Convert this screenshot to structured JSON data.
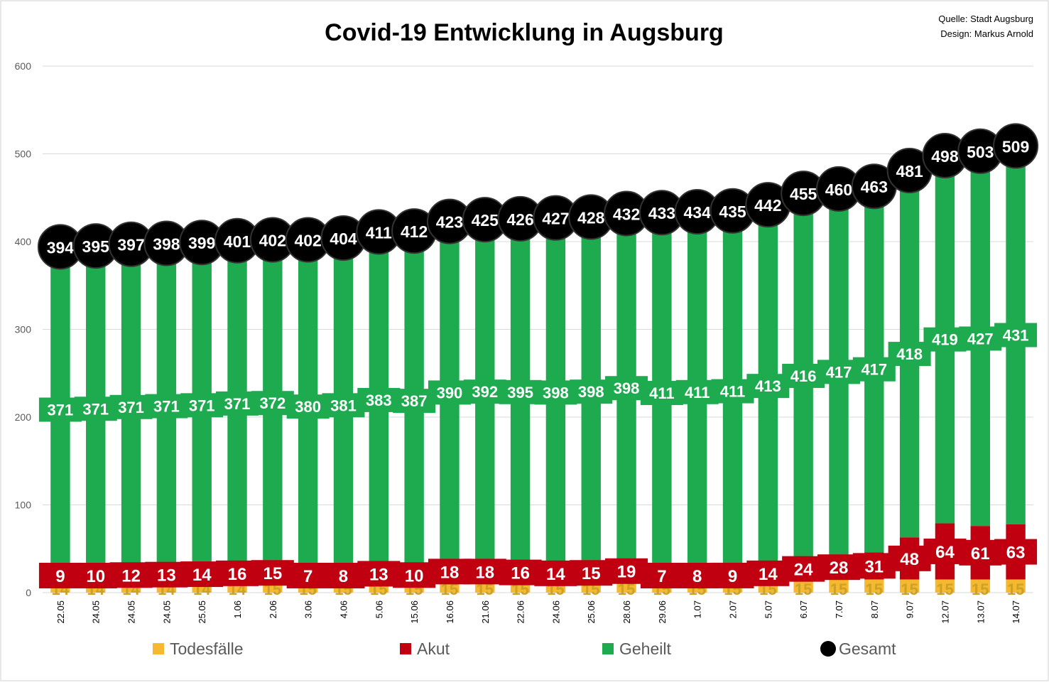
{
  "chart_data": {
    "type": "bar",
    "title": "Covid-19 Entwicklung in Augsburg",
    "source": {
      "line1": "Quelle: Stadt Augsburg",
      "line2": "Design: Markus Arnold"
    },
    "xlabel": "",
    "ylabel": "",
    "ylim": [
      0,
      600
    ],
    "yticks": [
      0,
      100,
      200,
      300,
      400,
      500,
      600
    ],
    "grid": true,
    "legend_position": "bottom",
    "categories": [
      "22.05",
      "24.05",
      "24.05",
      "24.05",
      "25.05",
      "1.06",
      "2.06",
      "3.06",
      "4.06",
      "5.06",
      "15.06",
      "16.06",
      "21.06",
      "22.06",
      "24.06",
      "25.06",
      "28.06",
      "29.06",
      "1.07",
      "2.07",
      "5.07",
      "6.07",
      "7.07",
      "8.07",
      "9.07",
      "12.07",
      "13.07",
      "14.07"
    ],
    "series": [
      {
        "name": "Todesfälle",
        "values": [
          14,
          14,
          14,
          14,
          14,
          14,
          15,
          15,
          15,
          15,
          15,
          15,
          15,
          15,
          15,
          15,
          15,
          15,
          15,
          15,
          15,
          15,
          15,
          15,
          15,
          15,
          15,
          15
        ]
      },
      {
        "name": "Akut",
        "values": [
          9,
          10,
          12,
          13,
          14,
          16,
          15,
          7,
          8,
          13,
          10,
          18,
          18,
          16,
          14,
          15,
          19,
          7,
          8,
          9,
          14,
          24,
          28,
          31,
          48,
          64,
          61,
          63
        ]
      },
      {
        "name": "Geheilt",
        "values": [
          371,
          371,
          371,
          371,
          371,
          371,
          372,
          380,
          381,
          383,
          387,
          390,
          392,
          395,
          398,
          398,
          398,
          411,
          411,
          411,
          413,
          416,
          417,
          417,
          418,
          419,
          427,
          431
        ]
      },
      {
        "name": "Gesamt",
        "values": [
          394,
          395,
          397,
          398,
          399,
          401,
          402,
          402,
          404,
          411,
          412,
          423,
          425,
          426,
          427,
          428,
          432,
          433,
          434,
          435,
          442,
          455,
          460,
          463,
          481,
          498,
          503,
          509
        ]
      }
    ],
    "colors": {
      "Todesfälle": "#f5b82e",
      "Akut": "#c00010",
      "Geheilt": "#1eaa4f",
      "Gesamt": "#000000",
      "grid": "#d9d9d9",
      "axis_text": "#595959"
    }
  }
}
